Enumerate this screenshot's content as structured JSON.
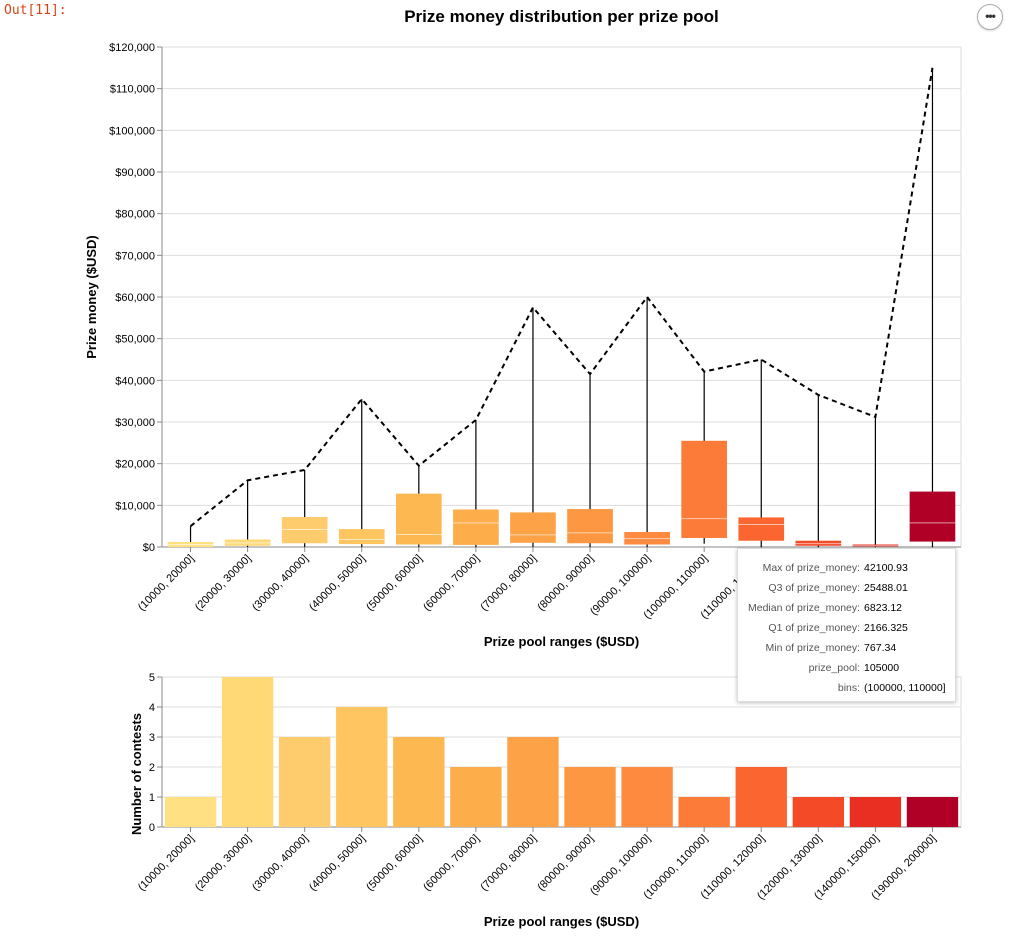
{
  "cell": {
    "prompt": "Out[11]:"
  },
  "menu": {
    "glyph": "•••"
  },
  "chart_data": [
    {
      "type": "boxplot",
      "title": "Prize money distribution per prize pool",
      "xlabel": "Prize pool ranges ($USD)",
      "ylabel": "Prize money ($USD)",
      "ylim": [
        0,
        120000
      ],
      "yticks": [
        "$0",
        "$10,000",
        "$20,000",
        "$30,000",
        "$40,000",
        "$50,000",
        "$60,000",
        "$70,000",
        "$80,000",
        "$90,000",
        "$100,000",
        "$110,000",
        "$120,000"
      ],
      "categories": [
        "(10000, 20000]",
        "(20000, 30000]",
        "(30000, 40000]",
        "(40000, 50000]",
        "(50000, 60000]",
        "(60000, 70000]",
        "(70000, 80000]",
        "(80000, 90000]",
        "(90000, 100000]",
        "(100000, 110000]",
        "(110000, 120000]",
        "(120000, 130000]",
        "(140000, 150000]",
        "(190000, 200000]"
      ],
      "series": [
        {
          "min": 0,
          "q1": 0,
          "median": 600,
          "q3": 1200,
          "max": 5000
        },
        {
          "min": 0,
          "q1": 300,
          "median": 1000,
          "q3": 1800,
          "max": 16000
        },
        {
          "min": 0,
          "q1": 900,
          "median": 4200,
          "q3": 7200,
          "max": 18500
        },
        {
          "min": 0,
          "q1": 700,
          "median": 1800,
          "q3": 4300,
          "max": 35500
        },
        {
          "min": 0,
          "q1": 600,
          "median": 3000,
          "q3": 12800,
          "max": 19500
        },
        {
          "min": 0,
          "q1": 500,
          "median": 5800,
          "q3": 9000,
          "max": 30500
        },
        {
          "min": 0,
          "q1": 1000,
          "median": 2900,
          "q3": 8300,
          "max": 57500
        },
        {
          "min": 0,
          "q1": 900,
          "median": 3400,
          "q3": 9100,
          "max": 41500
        },
        {
          "min": 0,
          "q1": 600,
          "median": 2000,
          "q3": 3600,
          "max": 60000
        },
        {
          "min": 767.34,
          "q1": 2166.325,
          "median": 6823.12,
          "q3": 25488.01,
          "max": 42100.93
        },
        {
          "min": 0,
          "q1": 1500,
          "median": 5400,
          "q3": 7100,
          "max": 45000
        },
        {
          "min": 0,
          "q1": 300,
          "median": 800,
          "q3": 1500,
          "max": 36500
        },
        {
          "min": 0,
          "q1": 100,
          "median": 300,
          "q3": 600,
          "max": 31200
        },
        {
          "min": 0,
          "q1": 1300,
          "median": 5800,
          "q3": 13300,
          "max": 115000
        }
      ],
      "max_line": {
        "style": "dashed",
        "color": "#000000"
      }
    },
    {
      "type": "bar",
      "xlabel": "Prize pool ranges ($USD)",
      "ylabel": "Number of contests",
      "ylim": [
        0,
        5
      ],
      "yticks": [
        "0",
        "1",
        "2",
        "3",
        "4",
        "5"
      ],
      "categories": [
        "(10000, 20000]",
        "(20000, 30000]",
        "(30000, 40000]",
        "(40000, 50000]",
        "(50000, 60000]",
        "(60000, 70000]",
        "(70000, 80000]",
        "(80000, 90000]",
        "(90000, 100000]",
        "(100000, 110000]",
        "(110000, 120000]",
        "(120000, 130000]",
        "(140000, 150000]",
        "(190000, 200000]"
      ],
      "values": [
        1,
        5,
        3,
        4,
        3,
        2,
        3,
        2,
        2,
        1,
        2,
        1,
        1,
        1
      ]
    }
  ],
  "colors": [
    "#ffe082",
    "#fed976",
    "#fecc6c",
    "#fec561",
    "#feb852",
    "#fead4b",
    "#fda246",
    "#fd9742",
    "#fd8a3e",
    "#fc7b38",
    "#fb6530",
    "#f54a28",
    "#e92f22",
    "#b10026"
  ],
  "tooltip": {
    "rows": [
      {
        "k": "Max of prize_money:",
        "v": "42100.93"
      },
      {
        "k": "Q3 of prize_money:",
        "v": "25488.01"
      },
      {
        "k": "Median of prize_money:",
        "v": "6823.12"
      },
      {
        "k": "Q1 of prize_money:",
        "v": "2166.325"
      },
      {
        "k": "Min of prize_money:",
        "v": "767.34"
      },
      {
        "k": "prize_pool:",
        "v": "105000"
      },
      {
        "k": "bins:",
        "v": "(100000, 110000]"
      }
    ]
  }
}
